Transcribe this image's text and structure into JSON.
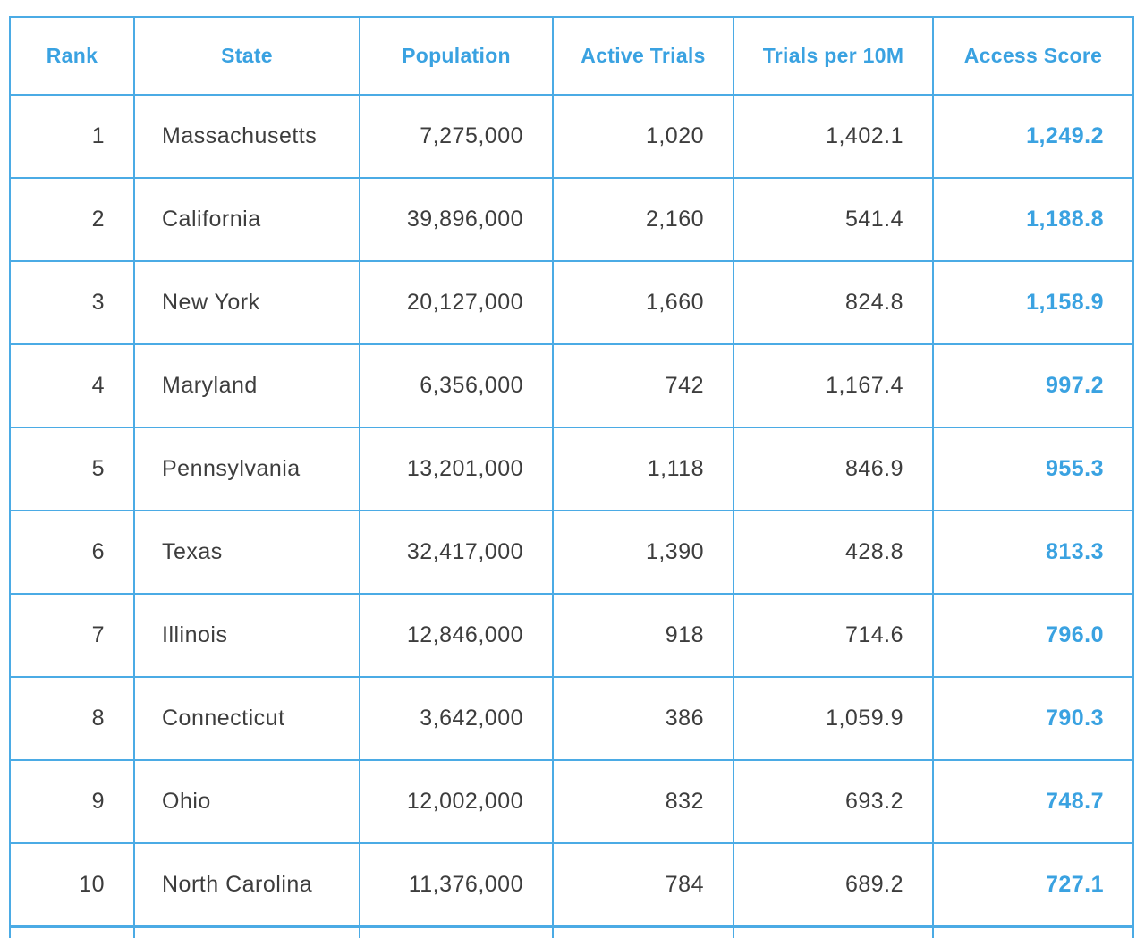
{
  "chart_data": {
    "type": "table",
    "columns": [
      "Rank",
      "State",
      "Population",
      "Active Trials",
      "Trials per 10M",
      "Access Score"
    ],
    "rows": [
      [
        1,
        "Massachusetts",
        7275000,
        1020,
        1402.1,
        1249.2
      ],
      [
        2,
        "California",
        39896000,
        2160,
        541.4,
        1188.8
      ],
      [
        3,
        "New York",
        20127000,
        1660,
        824.8,
        1158.9
      ],
      [
        4,
        "Maryland",
        6356000,
        742,
        1167.4,
        997.2
      ],
      [
        5,
        "Pennsylvania",
        13201000,
        1118,
        846.9,
        955.3
      ],
      [
        6,
        "Texas",
        32417000,
        1390,
        428.8,
        813.3
      ],
      [
        7,
        "Illinois",
        12846000,
        918,
        714.6,
        796.0
      ],
      [
        8,
        "Connecticut",
        3642000,
        386,
        1059.9,
        790.3
      ],
      [
        9,
        "Ohio",
        12002000,
        832,
        693.2,
        748.7
      ],
      [
        10,
        "North Carolina",
        11376000,
        784,
        689.2,
        727.1
      ]
    ],
    "legend_position": "none",
    "grid": true
  },
  "table": {
    "columns": [
      {
        "key": "rank",
        "label": "Rank"
      },
      {
        "key": "state",
        "label": "State"
      },
      {
        "key": "population",
        "label": "Population"
      },
      {
        "key": "active_trials",
        "label": "Active Trials"
      },
      {
        "key": "trials_per_10m",
        "label": "Trials per 10M"
      },
      {
        "key": "access_score",
        "label": "Access Score"
      }
    ],
    "rows": [
      {
        "rank": "1",
        "state": "Massachusetts",
        "population": "7,275,000",
        "active_trials": "1,020",
        "trials_per_10m": "1,402.1",
        "access_score": "1,249.2"
      },
      {
        "rank": "2",
        "state": "California",
        "population": "39,896,000",
        "active_trials": "2,160",
        "trials_per_10m": "541.4",
        "access_score": "1,188.8"
      },
      {
        "rank": "3",
        "state": "New York",
        "population": "20,127,000",
        "active_trials": "1,660",
        "trials_per_10m": "824.8",
        "access_score": "1,158.9"
      },
      {
        "rank": "4",
        "state": "Maryland",
        "population": "6,356,000",
        "active_trials": "742",
        "trials_per_10m": "1,167.4",
        "access_score": "997.2"
      },
      {
        "rank": "5",
        "state": "Pennsylvania",
        "population": "13,201,000",
        "active_trials": "1,118",
        "trials_per_10m": "846.9",
        "access_score": "955.3"
      },
      {
        "rank": "6",
        "state": "Texas",
        "population": "32,417,000",
        "active_trials": "1,390",
        "trials_per_10m": "428.8",
        "access_score": "813.3"
      },
      {
        "rank": "7",
        "state": "Illinois",
        "population": "12,846,000",
        "active_trials": "918",
        "trials_per_10m": "714.6",
        "access_score": "796.0"
      },
      {
        "rank": "8",
        "state": "Connecticut",
        "population": "3,642,000",
        "active_trials": "386",
        "trials_per_10m": "1,059.9",
        "access_score": "790.3"
      },
      {
        "rank": "9",
        "state": "Ohio",
        "population": "12,002,000",
        "active_trials": "832",
        "trials_per_10m": "693.2",
        "access_score": "748.7"
      },
      {
        "rank": "10",
        "state": "North Carolina",
        "population": "11,376,000",
        "active_trials": "784",
        "trials_per_10m": "689.2",
        "access_score": "727.1"
      }
    ]
  },
  "colors": {
    "accent": "#3aa2e1",
    "border": "#4babe5",
    "data_text": "#3d3d3d",
    "background": "#ffffff"
  }
}
